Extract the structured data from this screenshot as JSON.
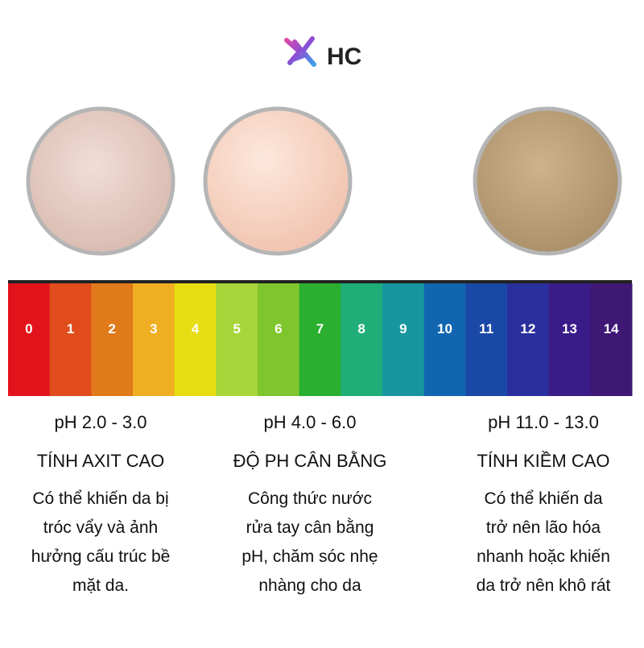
{
  "logo": {
    "text": "HC"
  },
  "ph_scale": {
    "labels": [
      "0",
      "1",
      "2",
      "3",
      "4",
      "5",
      "6",
      "7",
      "8",
      "9",
      "10",
      "11",
      "12",
      "13",
      "14"
    ],
    "colors": [
      "#e3131c",
      "#e04c1b",
      "#e07a1a",
      "#f0ae22",
      "#e6dd12",
      "#a6d63a",
      "#7fc52e",
      "#2aaf2e",
      "#1fae78",
      "#1896a0",
      "#1266b0",
      "#1a48a6",
      "#2a2f9e",
      "#391c88",
      "#3f1876"
    ]
  },
  "columns": [
    {
      "range": "pH 2.0 - 3.0",
      "title": "TÍNH AXIT CAO",
      "description": [
        "Có thể khiến da bị",
        "tróc vẩy và ảnh",
        "hưởng cấu trúc bề",
        "mặt da."
      ]
    },
    {
      "range": "pH 4.0 - 6.0",
      "title": "ĐỘ PH CÂN BẰNG",
      "description": [
        "Công thức nước",
        "rửa tay cân bằng",
        "pH, chăm sóc nhẹ",
        "nhàng cho da"
      ]
    },
    {
      "range": "pH 11.0 - 13.0",
      "title": "TÍNH KIỀM CAO",
      "description": [
        "Có thể khiến da",
        "trở nên lão hóa",
        "nhanh hoặc khiến",
        "da trở nên khô rát"
      ]
    }
  ]
}
